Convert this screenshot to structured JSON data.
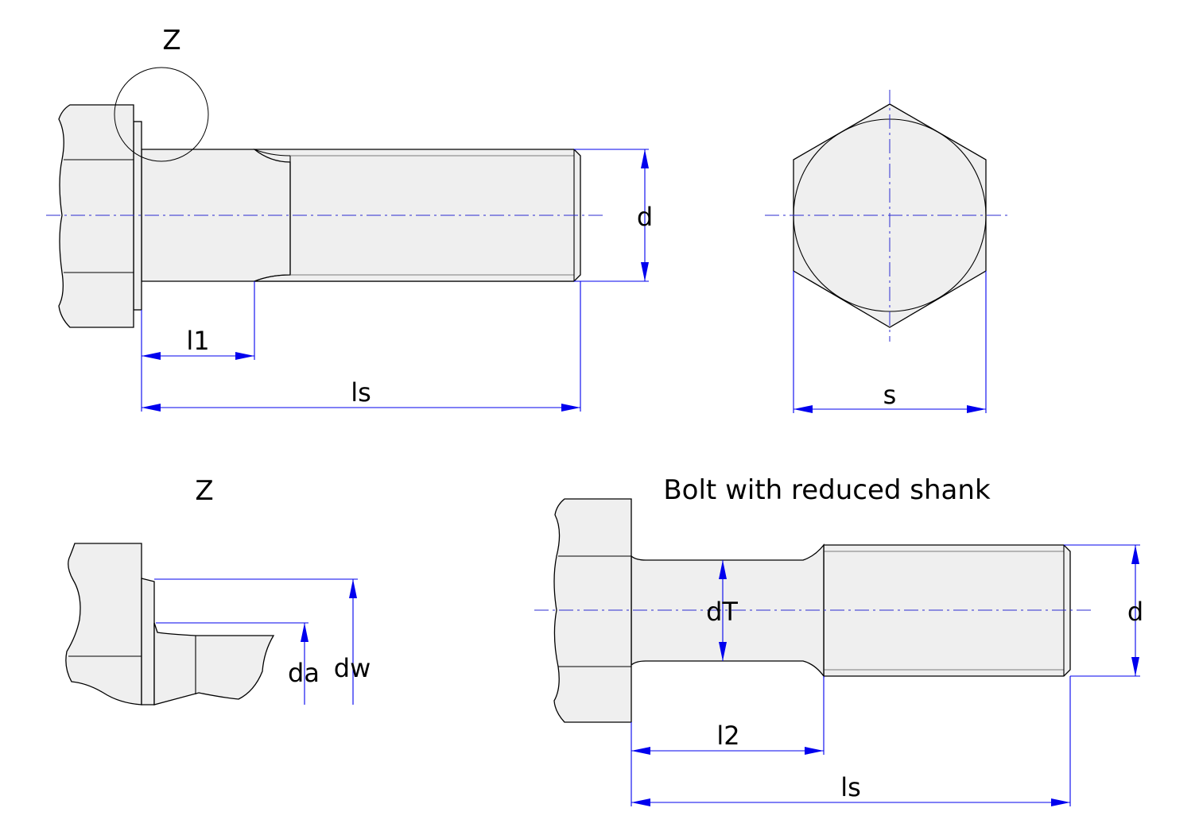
{
  "views": {
    "side": {
      "detail_marker": "Z",
      "dims": {
        "length1": "l1",
        "shank_length": "ls",
        "diameter": "d"
      }
    },
    "end": {
      "dims": {
        "across_flats": "s"
      }
    },
    "detail": {
      "title": "Z",
      "dims": {
        "bearing_diameter": "dw",
        "transition_diameter": "da"
      }
    },
    "reduced": {
      "title": "Bolt with reduced shank",
      "dims": {
        "reduced_diameter": "dT",
        "length2": "l2",
        "shank_length": "ls",
        "diameter": "d"
      }
    }
  },
  "colors": {
    "dimension": "#0000ee",
    "centerline": "#2b2bd0",
    "part_fill": "#efefef",
    "outline": "#000000"
  }
}
